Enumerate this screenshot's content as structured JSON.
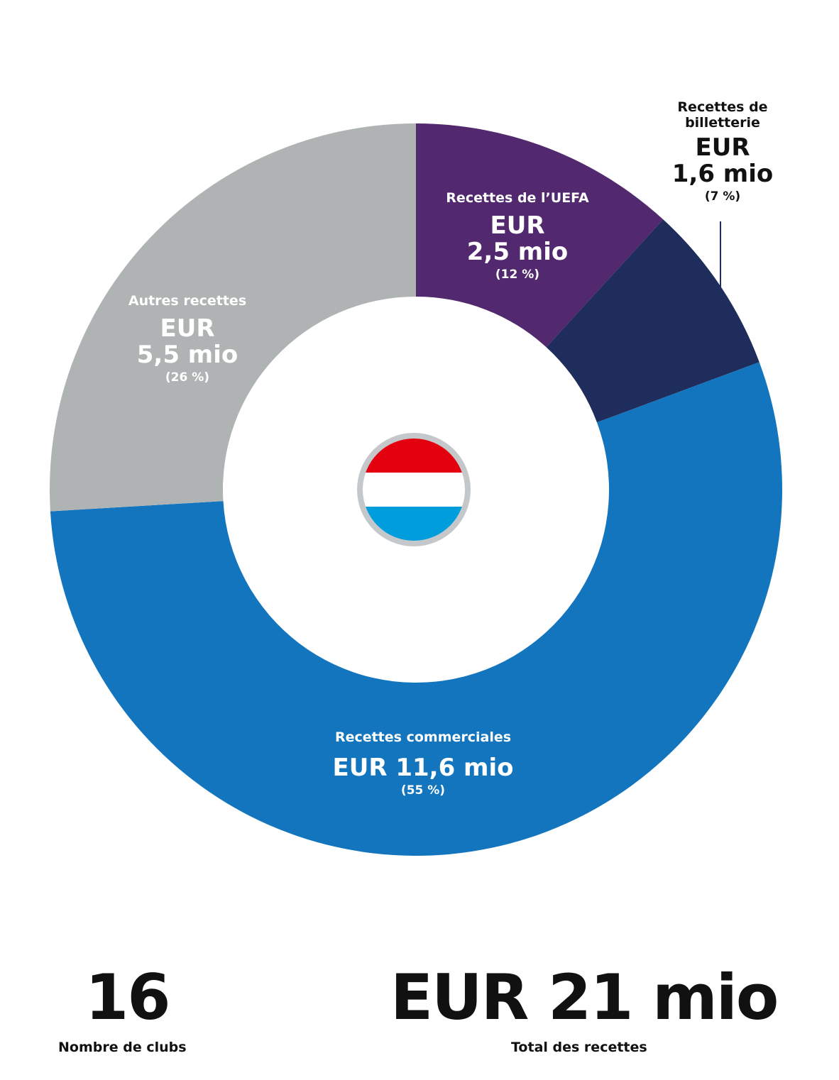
{
  "chart_data": {
    "type": "pie",
    "categories": [
      "Recettes de l’UEFA",
      "Recettes de billetterie",
      "Recettes commerciales",
      "Autres recettes"
    ],
    "values": [
      2.5,
      1.6,
      11.6,
      5.5
    ],
    "value_labels": [
      "EUR 2,5 mio",
      "EUR 1,6 mio",
      "EUR 11,6 mio",
      "EUR 5,5 mio"
    ],
    "percent_labels": [
      "(12 %)",
      "(7 %)",
      "(55 %)",
      "(26 %)"
    ],
    "percents": [
      12,
      7,
      55,
      26
    ],
    "colors": [
      "#52296e",
      "#1e2d5c",
      "#1275bd",
      "#b0b3b4"
    ],
    "donut": true,
    "center_icon": "luxembourg-flag-icon",
    "flag_colors": [
      "#e3000f",
      "#ffffff",
      "#009ddd"
    ]
  },
  "labels": {
    "uefa": {
      "name": "Recettes de l’UEFA",
      "cur": "EUR",
      "amount": "2,5 mio",
      "pct": "(12 %)"
    },
    "tickets": {
      "name_line1": "Recettes de",
      "name_line2": "billetterie",
      "cur": "EUR",
      "amount": "1,6 mio",
      "pct": "(7 %)"
    },
    "commercial": {
      "name": "Recettes commerciales",
      "amount": "EUR 11,6 mio",
      "pct": "(55 %)"
    },
    "other": {
      "name": "Autres recettes",
      "cur": "EUR",
      "amount": "5,5 mio",
      "pct": "(26 %)"
    }
  },
  "stats": {
    "clubs_value": "16",
    "clubs_label": "Nombre de clubs",
    "total_value": "EUR 21 mio",
    "total_label": "Total des recettes"
  }
}
